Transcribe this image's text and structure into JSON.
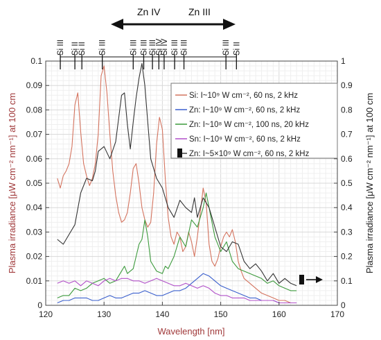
{
  "chart_data": {
    "type": "line",
    "xlabel": "Wavelength [nm]",
    "ylabel_left": "Plasma irradiance [μW cm⁻² nm⁻¹] at 100 cm",
    "ylabel_right": "Plasma irradiance [μW cm⁻² nm⁻¹] at 100 cm",
    "xlim": [
      120,
      170
    ],
    "ylim_left": [
      0,
      0.1
    ],
    "ylim_right": [
      0,
      1
    ],
    "x_ticks": [
      "120",
      "130",
      "140",
      "150",
      "160",
      "170"
    ],
    "y_ticks_left": [
      "0",
      "0.01",
      "0.02",
      "0.03",
      "0.04",
      "0.05",
      "0.06",
      "0.07",
      "0.08",
      "0.09",
      "0.1"
    ],
    "y_ticks_right": [
      "0",
      "0.1",
      "0.2",
      "0.3",
      "0.4",
      "0.5",
      "0.6",
      "0.7",
      "0.8",
      "0.9",
      "1"
    ],
    "grid": true,
    "legend_position": "top-right",
    "colors": {
      "si": "#d4735e",
      "zn1e9": "#3a5fcd",
      "zn1e8": "#3c9a3c",
      "sn": "#b14fc8",
      "zn5e9": "#333333",
      "ylabel_left": "#a0393a",
      "ylabel_right": "#222222",
      "xlabel": "#a0393a"
    },
    "series": [
      {
        "name": "Si: I~10⁹ W cm⁻², 60 ns, 2 kHz",
        "key": "si",
        "axis": "left",
        "x": [
          122,
          122.5,
          123,
          123.5,
          124,
          124.5,
          125,
          125.5,
          126,
          126.5,
          127,
          127.5,
          128,
          128.5,
          129,
          129.5,
          130,
          130.5,
          131,
          131.5,
          132,
          132.5,
          133,
          133.5,
          134,
          134.5,
          135,
          135.5,
          136,
          136.5,
          137,
          137.5,
          138,
          138.5,
          139,
          139.5,
          140,
          140.5,
          141,
          141.5,
          142,
          142.5,
          143,
          143.5,
          144,
          144.5,
          145,
          145.5,
          146,
          146.5,
          147,
          147.5,
          148,
          148.5,
          149,
          149.5,
          150,
          150.5,
          151,
          151.5,
          152,
          152.5,
          153,
          153.5,
          154,
          155,
          156,
          157,
          158,
          159,
          160,
          161,
          162,
          163
        ],
        "y": [
          0.052,
          0.048,
          0.053,
          0.055,
          0.058,
          0.065,
          0.082,
          0.087,
          0.071,
          0.058,
          0.053,
          0.049,
          0.052,
          0.058,
          0.07,
          0.094,
          0.098,
          0.087,
          0.07,
          0.055,
          0.045,
          0.038,
          0.034,
          0.035,
          0.038,
          0.046,
          0.056,
          0.058,
          0.05,
          0.04,
          0.035,
          0.032,
          0.034,
          0.046,
          0.066,
          0.077,
          0.072,
          0.052,
          0.036,
          0.028,
          0.025,
          0.03,
          0.028,
          0.022,
          0.024,
          0.03,
          0.026,
          0.02,
          0.028,
          0.038,
          0.048,
          0.042,
          0.025,
          0.018,
          0.016,
          0.019,
          0.024,
          0.028,
          0.03,
          0.028,
          0.031,
          0.026,
          0.018,
          0.014,
          0.011,
          0.009,
          0.007,
          0.005,
          0.004,
          0.003,
          0.002,
          0.002,
          0.001,
          0.001
        ]
      },
      {
        "name": "Zn: I~10⁹ W cm⁻², 60 ns, 2 kHz",
        "key": "zn1e9",
        "axis": "left",
        "x": [
          122,
          123,
          124,
          125,
          126,
          127,
          128,
          129,
          130,
          131,
          132,
          133,
          134,
          135,
          136,
          137,
          138,
          139,
          140,
          141,
          142,
          143,
          144,
          145,
          146,
          147,
          148,
          149,
          150,
          151,
          152,
          153,
          154,
          155,
          156,
          157,
          158,
          159,
          160,
          161,
          162,
          163
        ],
        "y": [
          0.001,
          0.002,
          0.002,
          0.003,
          0.003,
          0.003,
          0.002,
          0.002,
          0.003,
          0.004,
          0.003,
          0.003,
          0.004,
          0.005,
          0.005,
          0.006,
          0.005,
          0.004,
          0.004,
          0.005,
          0.006,
          0.006,
          0.007,
          0.009,
          0.011,
          0.013,
          0.012,
          0.01,
          0.008,
          0.007,
          0.006,
          0.005,
          0.004,
          0.003,
          0.003,
          0.002,
          0.002,
          0.002,
          0.001,
          0.001,
          0.001,
          0.001
        ]
      },
      {
        "name": "Zn: I~10⁸ W cm⁻², 100 ns, 20 kHz",
        "key": "zn1e8",
        "axis": "left",
        "x": [
          122,
          123,
          124,
          125,
          126,
          127,
          128,
          129,
          130,
          131,
          132,
          133,
          133.5,
          134,
          135,
          135.5,
          136,
          136.5,
          137,
          137.5,
          138,
          139,
          140,
          140.5,
          141,
          142,
          143,
          144,
          145,
          146,
          147,
          147.5,
          148,
          149,
          150,
          151,
          152,
          153,
          154,
          155,
          156,
          157,
          158,
          159,
          160,
          161,
          162,
          163
        ],
        "y": [
          0.003,
          0.004,
          0.004,
          0.007,
          0.006,
          0.007,
          0.009,
          0.01,
          0.011,
          0.009,
          0.01,
          0.014,
          0.016,
          0.013,
          0.015,
          0.02,
          0.025,
          0.027,
          0.035,
          0.028,
          0.018,
          0.014,
          0.013,
          0.016,
          0.015,
          0.02,
          0.028,
          0.024,
          0.035,
          0.032,
          0.04,
          0.046,
          0.04,
          0.028,
          0.022,
          0.026,
          0.018,
          0.015,
          0.014,
          0.013,
          0.012,
          0.011,
          0.009,
          0.01,
          0.008,
          0.007,
          0.006,
          0.006
        ]
      },
      {
        "name": "Sn: I~10⁹ W cm⁻², 60 ns, 2 kHz",
        "key": "sn",
        "axis": "left",
        "x": [
          122,
          123,
          124,
          125,
          126,
          127,
          128,
          129,
          130,
          131,
          132,
          133,
          134,
          135,
          136,
          137,
          138,
          139,
          140,
          141,
          142,
          143,
          144,
          145,
          146,
          147,
          148,
          149,
          150,
          151,
          152,
          153,
          154,
          155,
          156,
          157,
          158,
          159,
          160,
          161,
          162,
          163
        ],
        "y": [
          0.009,
          0.01,
          0.009,
          0.01,
          0.008,
          0.01,
          0.009,
          0.008,
          0.01,
          0.011,
          0.01,
          0.011,
          0.011,
          0.01,
          0.01,
          0.009,
          0.01,
          0.011,
          0.01,
          0.009,
          0.008,
          0.008,
          0.009,
          0.008,
          0.007,
          0.008,
          0.007,
          0.005,
          0.004,
          0.004,
          0.003,
          0.003,
          0.003,
          0.002,
          0.002,
          0.002,
          0.002,
          0.002,
          0.001,
          0.001,
          0.001,
          0.001
        ]
      },
      {
        "name": "Zn: I~5×10⁹ W cm⁻², 60 ns, 2 kHz",
        "key": "zn5e9",
        "axis": "right",
        "x": [
          122,
          123,
          124,
          125,
          126,
          127,
          128,
          128.5,
          129,
          130,
          131,
          132,
          133,
          133.5,
          134,
          134.5,
          135,
          135.5,
          136,
          136.5,
          137,
          137.5,
          138,
          139,
          140,
          141,
          142,
          143,
          144,
          145,
          145.5,
          146,
          147,
          148,
          149,
          150,
          151,
          152,
          153,
          154,
          155,
          156,
          157,
          158,
          159,
          160,
          161,
          162,
          163
        ],
        "y": [
          0.27,
          0.25,
          0.29,
          0.33,
          0.46,
          0.52,
          0.51,
          0.55,
          0.63,
          0.65,
          0.6,
          0.67,
          0.86,
          0.87,
          0.74,
          0.64,
          0.75,
          0.85,
          0.93,
          0.99,
          0.9,
          0.75,
          0.6,
          0.52,
          0.48,
          0.4,
          0.36,
          0.43,
          0.4,
          0.38,
          0.44,
          0.36,
          0.44,
          0.4,
          0.32,
          0.24,
          0.22,
          0.26,
          0.25,
          0.18,
          0.15,
          0.17,
          0.14,
          0.1,
          0.13,
          0.09,
          0.11,
          0.09,
          0.08
        ]
      }
    ],
    "line_labels": [
      {
        "text": "Si III",
        "x": 122.5
      },
      {
        "text": "Si II",
        "x": 125
      },
      {
        "text": "Si II",
        "x": 126.2
      },
      {
        "text": "Si III",
        "x": 129.7
      },
      {
        "text": "Si III",
        "x": 135
      },
      {
        "text": "Si III",
        "x": 136.8
      },
      {
        "text": "Si III",
        "x": 138.3
      },
      {
        "text": "Si IV",
        "x": 139.4
      },
      {
        "text": "Si IV",
        "x": 140.3
      },
      {
        "text": "Si III",
        "x": 142.1
      },
      {
        "text": "Si III",
        "x": 143.7
      },
      {
        "text": "Si III",
        "x": 150.9
      },
      {
        "text": "Si II",
        "x": 152.7
      }
    ],
    "region_labels": {
      "left": "Zn IV",
      "right": "Zn III"
    }
  }
}
